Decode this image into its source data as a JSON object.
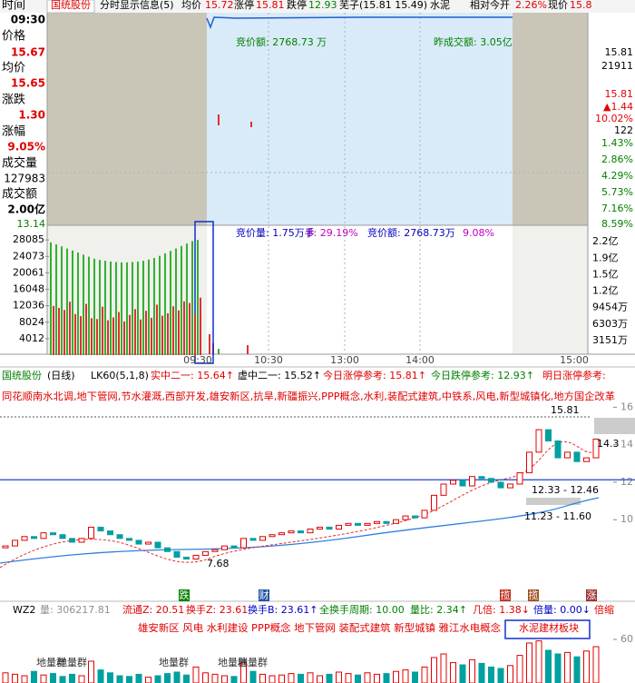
{
  "top_bar": [
    "国统股份",
    "分时显示信息(5)",
    "均价",
    "15.72",
    "涨停",
    "15.81",
    "跌停",
    "12.93",
    "芜子(15.81 15.49)",
    "水泥",
    "相对今开",
    "2.26%",
    "现价",
    "15.8"
  ],
  "left_panel": {
    "labels": [
      "时间",
      "价格",
      "均价",
      "涨跌",
      "涨幅",
      "成交量",
      "成交额"
    ],
    "values": [
      "09:30",
      "15.67",
      "15.65",
      "1.30",
      "9.05%",
      "127983",
      "2.00亿"
    ],
    "extra": "13.14"
  },
  "intraday": {
    "annotations": [
      "竞价额: 2768.73 万",
      "昨成交额: 3.05亿",
      "竞价量: 1.75万手",
      "B: 29.19%",
      "竞价额: 2768.73万",
      "9.08%"
    ],
    "time_labels": [
      "09:30",
      "10:30",
      "13:00",
      "14:00",
      "15:00"
    ],
    "right_labels": [
      "15.81",
      "21911",
      "15.81",
      "▲1.44",
      "10.02%",
      "122",
      "1.43%",
      "2.86%",
      "4.29%",
      "5.73%",
      "7.16%",
      "8.59%"
    ]
  },
  "auction": {
    "ylim": [
      0,
      31000
    ],
    "yticks": [
      4012,
      8024,
      12036,
      16048,
      20061,
      24073,
      28085
    ],
    "amount_labels": [
      "3151万",
      "6303万",
      "9454万",
      "1.2亿",
      "1.5亿",
      "1.9亿",
      "2.2亿"
    ],
    "green": {
      "color": "#33b033",
      "values": [
        27500,
        27000,
        26500,
        26000,
        25500,
        25000,
        24500,
        24000,
        23500,
        23200,
        23000,
        22800,
        22700,
        22600,
        22600,
        22700,
        22800,
        23000,
        23300,
        23700,
        24200,
        24800,
        25400,
        26000,
        26600,
        27200,
        27800,
        28085
      ]
    },
    "red": {
      "color": "#e03030",
      "values": [
        12000,
        11500,
        11000,
        13000,
        10000,
        9500,
        12500,
        9000,
        8800,
        11800,
        8500,
        9200,
        10500,
        8200,
        9800,
        11200,
        8700,
        10800,
        9100,
        12300,
        9600,
        10200,
        11900,
        10900,
        13100,
        12700,
        9700,
        14000
      ]
    }
  },
  "daily": {
    "header": [
      {
        "text": "国统股份",
        "color": "#008000"
      },
      {
        "text": "(日线)",
        "color": "#000000"
      },
      {
        "text": "LK60(5,1,8)",
        "color": "#000000"
      },
      {
        "text": "实中二一: 15.64↑",
        "color": "#e00000"
      },
      {
        "text": "虚中二一: 15.52↑",
        "color": "#000000"
      },
      {
        "text": "今日涨停参考: 15.81↑",
        "color": "#e00000"
      },
      {
        "text": "今日跌停参考: 12.93↑",
        "color": "#008000"
      },
      {
        "text": "明日涨停参考:",
        "color": "#e00000"
      }
    ],
    "concepts": "同花顺南水北调,地下管网,节水灌溉,西部开发,雄安新区,抗旱,新疆振兴,PPP概念,水利,装配式建筑,中铁系,风电,新型城镇化,地方国企改革",
    "ylim": [
      7.2,
      16.5
    ],
    "yticks": [
      10,
      12,
      14,
      16
    ],
    "support_line": 12.13,
    "annotations": [
      "15.81",
      "14.3",
      "12.33 - 12.46",
      "11.23 - 11.60",
      "7.68"
    ],
    "tags": [
      "跌",
      "财",
      "揽",
      "揽",
      "涨"
    ],
    "up_color": "#e00000",
    "down_color": "#00a0a0",
    "open": [
      8.5,
      8.6,
      8.9,
      9.1,
      9.0,
      9.3,
      9.2,
      9.0,
      8.8,
      9.0,
      9.6,
      9.4,
      9.2,
      9.0,
      8.9,
      8.7,
      8.8,
      8.5,
      8.3,
      8.0,
      7.9,
      8.1,
      8.3,
      8.4,
      8.6,
      8.5,
      9.0,
      8.9,
      9.1,
      9.2,
      9.3,
      9.4,
      9.3,
      9.5,
      9.6,
      9.5,
      9.7,
      9.8,
      9.7,
      9.8,
      9.9,
      9.8,
      10.0,
      10.2,
      10.1,
      10.5,
      11.3,
      11.9,
      12.1,
      11.8,
      12.3,
      12.2,
      12.0,
      11.7,
      11.9,
      12.5,
      13.6,
      14.8,
      14.2,
      13.3,
      13.6,
      13.1,
      13.3
    ],
    "close": [
      8.6,
      8.9,
      9.1,
      9.0,
      9.3,
      9.2,
      9.0,
      8.8,
      9.0,
      9.6,
      9.4,
      9.2,
      9.0,
      8.9,
      8.7,
      8.8,
      8.5,
      8.3,
      8.0,
      7.9,
      8.1,
      8.3,
      8.4,
      8.6,
      8.5,
      9.0,
      8.9,
      9.1,
      9.2,
      9.3,
      9.4,
      9.3,
      9.5,
      9.6,
      9.5,
      9.7,
      9.8,
      9.7,
      9.8,
      9.9,
      9.8,
      10.0,
      10.2,
      10.1,
      10.5,
      11.3,
      11.9,
      12.1,
      11.8,
      12.3,
      12.2,
      12.0,
      11.7,
      11.9,
      12.5,
      13.6,
      14.8,
      14.2,
      13.3,
      13.6,
      13.1,
      13.3,
      14.3
    ]
  },
  "indicator": {
    "header": [
      {
        "text": "WZ2",
        "color": "#000000"
      },
      {
        "text": "量: 306217.81",
        "color": "#909090"
      },
      {
        "text": "流通Z: 20.51",
        "color": "#e00000"
      },
      {
        "text": "换手Z: 23.61",
        "color": "#e00000"
      },
      {
        "text": "换手B: 23.61↑",
        "color": "#0000c0"
      },
      {
        "text": "全换手周期: 10.00",
        "color": "#008000"
      },
      {
        "text": "量比: 2.34↑",
        "color": "#008000"
      },
      {
        "text": "几倍: 1.38↓",
        "color": "#e00000"
      },
      {
        "text": "倍量: 0.00↓",
        "color": "#0000c0"
      },
      {
        "text": "倍缩",
        "color": "#e00000"
      }
    ],
    "concepts": "雄安新区 风电 水利建设 PPP概念 地下管网 装配式建筑 新型城镇 雅江水电概念",
    "board": "水泥建材板块",
    "group_labels": [
      "地量群",
      "地量群",
      "地量群",
      "地量群",
      "地量群"
    ],
    "ylim": [
      0,
      60
    ],
    "yticks": [
      60
    ],
    "volumes": [
      14,
      12,
      10,
      16,
      11,
      13,
      9,
      12,
      10,
      30,
      18,
      14,
      10,
      9,
      12,
      8,
      10,
      13,
      15,
      11,
      22,
      14,
      12,
      10,
      9,
      28,
      16,
      12,
      10,
      11,
      13,
      12,
      14,
      10,
      12,
      15,
      13,
      11,
      14,
      12,
      13,
      16,
      18,
      15,
      22,
      35,
      40,
      28,
      25,
      32,
      27,
      22,
      20,
      24,
      38,
      55,
      58,
      45,
      40,
      42,
      36,
      44,
      50
    ]
  }
}
